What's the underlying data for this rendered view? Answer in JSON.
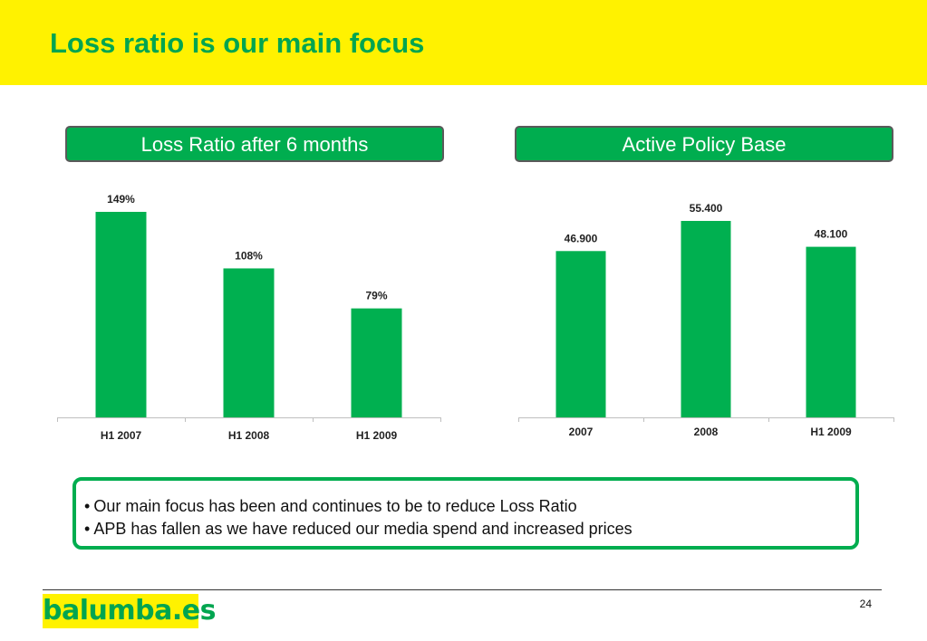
{
  "slide": {
    "title": "Loss ratio is our main focus",
    "page_number": "24",
    "logo_text": "balumba.es",
    "bullets": [
      "Our main focus has been and continues to be to reduce Loss Ratio",
      "APB has fallen as we have reduced our media spend and increased prices"
    ]
  },
  "colors": {
    "header_yellow": "#fff200",
    "brand_green": "#00ad4f",
    "bar_green": "#00b050"
  },
  "chart_data": [
    {
      "type": "bar",
      "title": "Loss Ratio after 6 months",
      "categories": [
        "H1 2007",
        "H1 2008",
        "H1 2009"
      ],
      "values": [
        149,
        108,
        79
      ],
      "value_labels": [
        "149%",
        "108%",
        "79%"
      ],
      "unit": "%",
      "ylim": [
        0,
        149
      ],
      "grid": false,
      "xlabel": "",
      "ylabel": ""
    },
    {
      "type": "bar",
      "title": "Active Policy Base",
      "categories": [
        "2007",
        "2008",
        "H1 2009"
      ],
      "values": [
        46900,
        55400,
        48100
      ],
      "value_labels": [
        "46.900",
        "55.400",
        "48.100"
      ],
      "ylim": [
        0,
        55400
      ],
      "grid": false,
      "xlabel": "",
      "ylabel": ""
    }
  ]
}
